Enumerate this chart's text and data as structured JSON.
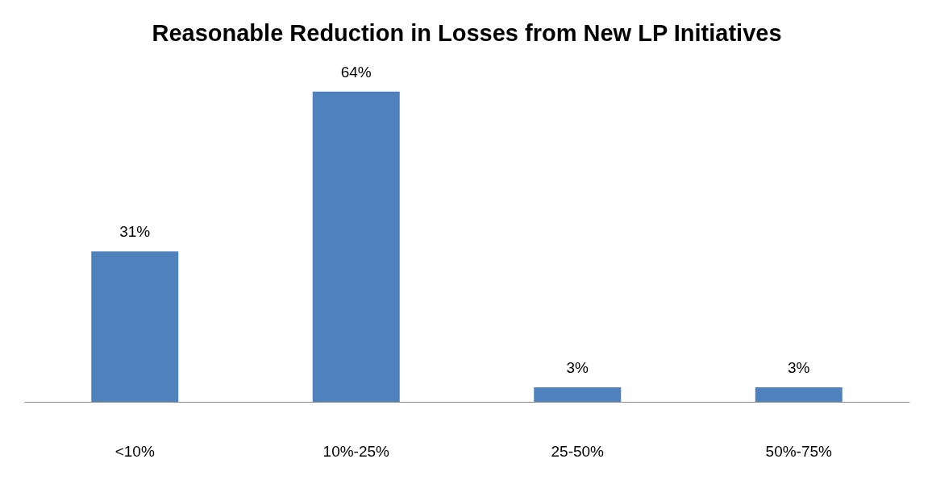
{
  "chart_data": {
    "type": "bar",
    "title": "Reasonable Reduction in Losses from New LP Initiatives",
    "categories": [
      "<10%",
      "10%-25%",
      "25-50%",
      "50%-75%"
    ],
    "values": [
      31,
      64,
      3,
      3
    ],
    "value_labels": [
      "31%",
      "64%",
      "3%",
      "3%"
    ],
    "color": "#4f81bd"
  }
}
